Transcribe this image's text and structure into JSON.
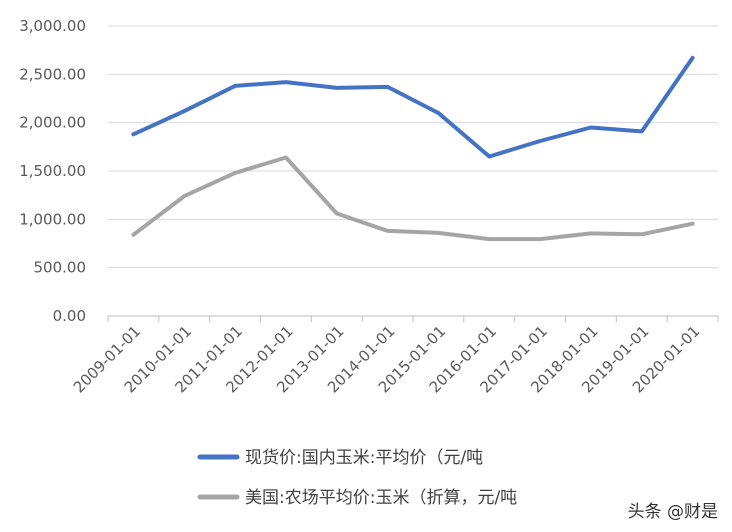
{
  "chart_data": {
    "type": "line",
    "categories": [
      "2009-01-01",
      "2010-01-01",
      "2011-01-01",
      "2012-01-01",
      "2013-01-01",
      "2014-01-01",
      "2015-01-01",
      "2016-01-01",
      "2017-01-01",
      "2018-01-01",
      "2019-01-01",
      "2020-01-01"
    ],
    "series": [
      {
        "name": "现货价:国内玉米:平均价（元/吨",
        "color": "#4472C4",
        "values": [
          1880,
          2120,
          2380,
          2420,
          2360,
          2370,
          2100,
          1650,
          1810,
          1950,
          1910,
          2670
        ]
      },
      {
        "name": "美国:农场平均价:玉米（折算，元/吨",
        "color": "#A5A5A5",
        "values": [
          840,
          1240,
          1480,
          1640,
          1060,
          880,
          860,
          795,
          795,
          855,
          845,
          955
        ]
      }
    ],
    "y_ticks": [
      "0.00",
      "500.00",
      "1,000.00",
      "1,500.00",
      "2,000.00",
      "2,500.00",
      "3,000.00"
    ],
    "ylim": [
      0,
      3000
    ],
    "grid": "horizontal",
    "legend_position": "bottom"
  },
  "watermark": "头条 @财是"
}
